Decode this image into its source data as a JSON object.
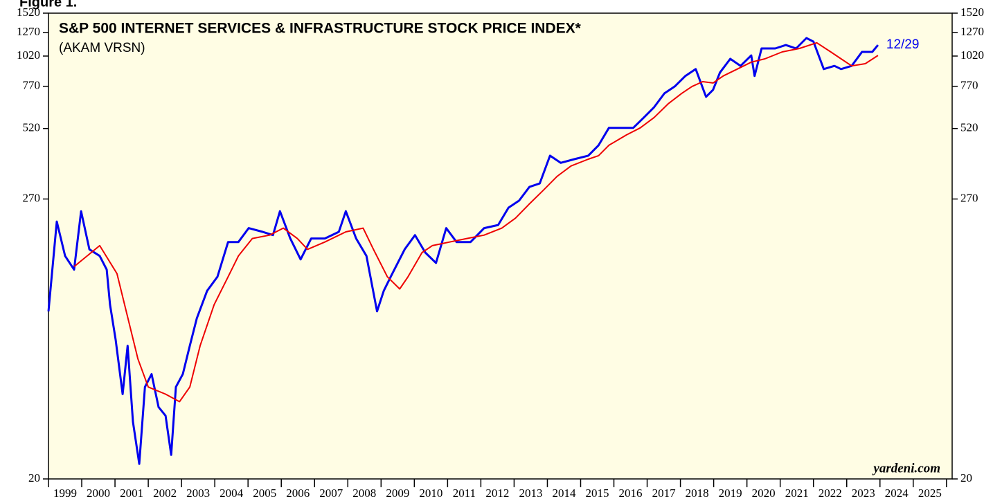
{
  "chart_data": {
    "type": "line",
    "figure_label": "Figure 1.",
    "title": "S&P 500 INTERNET SERVICES & INFRASTRUCTURE STOCK PRICE INDEX*",
    "subtitle": "(AKAM VRSN)",
    "end_label": "12/29",
    "source": "yardeni.com",
    "log_scale": true,
    "ylim": [
      20,
      1520
    ],
    "yticks": [
      20,
      270,
      520,
      770,
      1020,
      1270,
      1520
    ],
    "xlim": [
      1999,
      2026.17
    ],
    "xticks": [
      1999,
      2000,
      2001,
      2002,
      2003,
      2004,
      2005,
      2006,
      2007,
      2008,
      2009,
      2010,
      2011,
      2012,
      2013,
      2014,
      2015,
      2016,
      2017,
      2018,
      2019,
      2020,
      2021,
      2022,
      2023,
      2024,
      2025,
      2026
    ],
    "categories": [
      "1999",
      "2000",
      "2001",
      "2002",
      "2003",
      "2004",
      "2005",
      "2006",
      "2007",
      "2008",
      "2009",
      "2010",
      "2011",
      "2012",
      "2013",
      "2014",
      "2015",
      "2016",
      "2017",
      "2018",
      "2019",
      "2020",
      "2021",
      "2022",
      "2023",
      "2024",
      "2025"
    ],
    "background": "#fffde4",
    "series": [
      {
        "color": "#0000ee",
        "x": [
          1999.0,
          1999.25,
          1999.5,
          1999.77,
          1999.98,
          2000.23,
          2000.54,
          2000.75,
          2000.85,
          2001.02,
          2001.23,
          2001.38,
          2001.54,
          2001.73,
          2001.9,
          2002.1,
          2002.31,
          2002.52,
          2002.69,
          2002.83,
          2003.04,
          2003.25,
          2003.46,
          2003.77,
          2004.08,
          2004.4,
          2004.71,
          2005.02,
          2005.44,
          2005.75,
          2005.96,
          2006.27,
          2006.58,
          2006.9,
          2007.31,
          2007.73,
          2007.94,
          2008.25,
          2008.56,
          2008.88,
          2009.08,
          2009.29,
          2009.71,
          2010.02,
          2010.33,
          2010.65,
          2010.96,
          2011.27,
          2011.69,
          2012.1,
          2012.52,
          2012.83,
          2013.15,
          2013.46,
          2013.77,
          2014.08,
          2014.4,
          2014.81,
          2015.23,
          2015.54,
          2015.85,
          2016.27,
          2016.58,
          2016.9,
          2017.21,
          2017.52,
          2017.83,
          2018.15,
          2018.46,
          2018.77,
          2018.98,
          2019.19,
          2019.5,
          2019.81,
          2020.13,
          2020.23,
          2020.44,
          2020.85,
          2021.17,
          2021.48,
          2021.79,
          2022.0,
          2022.31,
          2022.63,
          2022.83,
          2023.15,
          2023.46,
          2023.77,
          2023.94
        ],
        "values": [
          95,
          219,
          159,
          140,
          241,
          169,
          159,
          140,
          101,
          73,
          44,
          69,
          34,
          23,
          47,
          53,
          39,
          36,
          25,
          47,
          53,
          69,
          89,
          115,
          131,
          181,
          181,
          206,
          199,
          193,
          241,
          187,
          154,
          187,
          187,
          199,
          241,
          187,
          159,
          95,
          115,
          131,
          169,
          193,
          164,
          149,
          206,
          181,
          181,
          206,
          212,
          249,
          266,
          302,
          312,
          404,
          378,
          391,
          404,
          445,
          523,
          523,
          523,
          576,
          634,
          721,
          769,
          848,
          904,
          698,
          745,
          875,
          994,
          931,
          1026,
          848,
          1095,
          1095,
          1130,
          1095,
          1206,
          1167,
          904,
          931,
          904,
          931,
          1060,
          1060,
          1130
        ]
      },
      {
        "color": "#ee0000",
        "x": [
          1999.77,
          2000.54,
          2001.06,
          2001.69,
          2002.0,
          2002.52,
          2002.94,
          2003.25,
          2003.56,
          2003.98,
          2004.4,
          2004.71,
          2005.13,
          2005.65,
          2006.06,
          2006.48,
          2006.79,
          2007.31,
          2007.94,
          2008.46,
          2008.77,
          2009.19,
          2009.56,
          2009.81,
          2010.23,
          2010.54,
          2011.06,
          2011.58,
          2012.1,
          2012.63,
          2013.04,
          2013.46,
          2013.88,
          2014.29,
          2014.71,
          2015.23,
          2015.54,
          2015.85,
          2016.38,
          2016.79,
          2017.21,
          2017.63,
          2018.04,
          2018.35,
          2018.67,
          2018.98,
          2019.29,
          2019.71,
          2020.13,
          2020.54,
          2021.06,
          2021.58,
          2022.1,
          2022.52,
          2022.83,
          2023.15,
          2023.56,
          2023.94
        ],
        "values": [
          144,
          175,
          135,
          61,
          47,
          44,
          41,
          47,
          69,
          101,
          131,
          159,
          187,
          193,
          206,
          187,
          169,
          181,
          199,
          206,
          169,
          131,
          117,
          131,
          164,
          175,
          181,
          187,
          193,
          206,
          226,
          258,
          293,
          333,
          367,
          391,
          404,
          445,
          490,
          523,
          576,
          654,
          721,
          769,
          804,
          794,
          848,
          904,
          964,
          994,
          1060,
          1095,
          1154,
          1060,
          994,
          931,
          950,
          1026
        ]
      }
    ]
  }
}
